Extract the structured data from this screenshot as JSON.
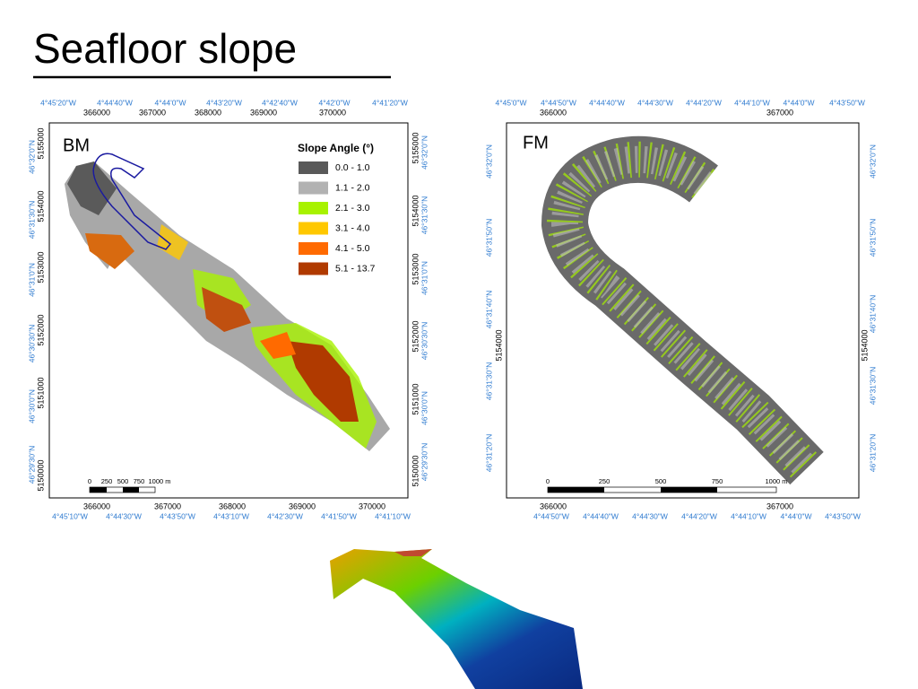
{
  "title": "Seafloor slope",
  "bm": {
    "label": "BM",
    "legend": {
      "title": "Slope Angle (°)",
      "items": [
        {
          "label": "0.0 -  1.0",
          "color": "#595959"
        },
        {
          "label": "1.1 -  2.0",
          "color": "#b2b2b2"
        },
        {
          "label": "2.1 -  3.0",
          "color": "#a8f200"
        },
        {
          "label": "3.1 -  4.0",
          "color": "#ffc800"
        },
        {
          "label": "4.1 -  5.0",
          "color": "#ff6a00"
        },
        {
          "label": "5.1 - 13.7",
          "color": "#b03a00"
        }
      ]
    },
    "top_lon": [
      "4°45'20\"W",
      "4°44'40\"W",
      "4°44'0\"W",
      "4°43'20\"W",
      "4°42'40\"W",
      "4°42'0\"W",
      "4°41'20\"W"
    ],
    "bottom_lon": [
      "4°45'10\"W",
      "4°44'30\"W",
      "4°43'50\"W",
      "4°43'10\"W",
      "4°42'30\"W",
      "4°41'50\"W",
      "4°41'10\"W"
    ],
    "easting": [
      "366000",
      "367000",
      "368000",
      "369000",
      "370000"
    ],
    "lat": [
      "46°32'0\"N",
      "46°31'30\"N",
      "46°31'0\"N",
      "46°30'30\"N",
      "46°30'0\"N",
      "46°29'30\"N"
    ],
    "northing": [
      "5155000",
      "5154000",
      "5153000",
      "5152000",
      "5151000",
      "5150000"
    ],
    "scale": [
      "0",
      "250",
      "500",
      "750",
      "1000 m"
    ]
  },
  "fm": {
    "label": "FM",
    "top_lon": [
      "4°45'0\"W",
      "4°44'50\"W",
      "4°44'40\"W",
      "4°44'30\"W",
      "4°44'20\"W",
      "4°44'10\"W",
      "4°44'0\"W",
      "4°43'50\"W"
    ],
    "bottom_lon": [
      "4°44'50\"W",
      "4°44'40\"W",
      "4°44'30\"W",
      "4°44'20\"W",
      "4°44'10\"W",
      "4°44'0\"W",
      "4°43'50\"W"
    ],
    "easting": [
      "366000",
      "367000"
    ],
    "lat": [
      "46°32'0\"N",
      "46°31'50\"N",
      "46°31'40\"N",
      "46°31'30\"N",
      "46°31'20\"N"
    ],
    "northing": [
      "5154000"
    ],
    "scale": [
      "0",
      "250",
      "500",
      "750",
      "1000 m"
    ]
  }
}
